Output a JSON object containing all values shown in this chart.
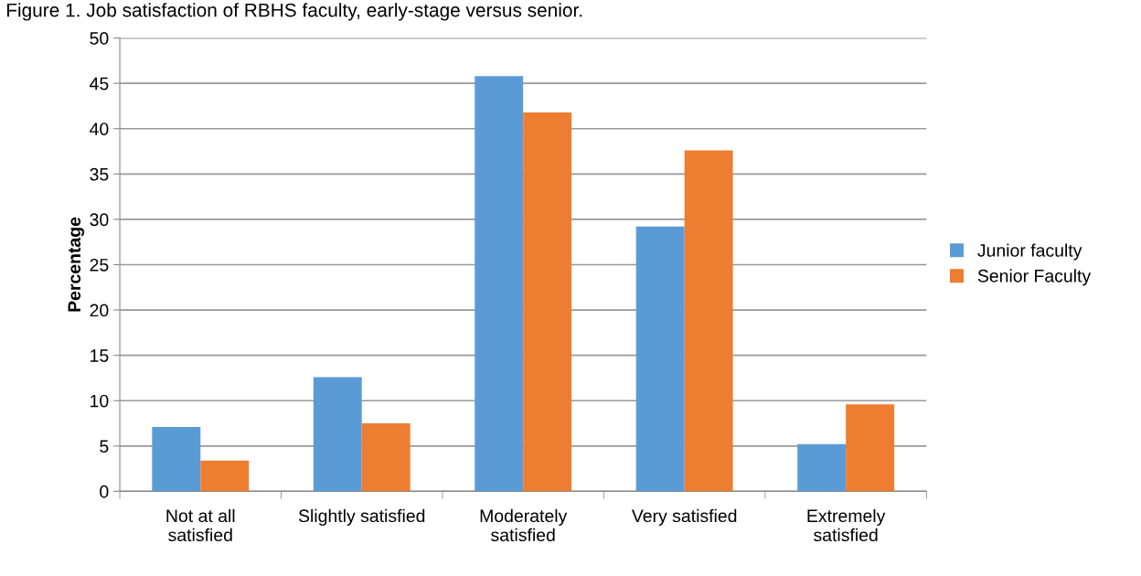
{
  "chart_data": {
    "type": "bar",
    "title": "Figure 1. Job satisfaction of RBHS faculty, early-stage versus senior.",
    "ylabel": "Percentage",
    "categories": [
      "Not at all\nsatisfied",
      "Slightly satisfied",
      "Moderately\nsatisfied",
      "Very satisfied",
      "Extremely\nsatisfied"
    ],
    "series": [
      {
        "name": "Junior faculty",
        "color": "#5b9bd5",
        "values": [
          7.1,
          12.6,
          45.8,
          29.2,
          5.2
        ]
      },
      {
        "name": "Senior Faculty",
        "color": "#ed7d31",
        "values": [
          3.4,
          7.5,
          41.8,
          37.6,
          9.6
        ]
      }
    ],
    "ylim": [
      0,
      50
    ],
    "yticks": [
      0,
      5,
      10,
      15,
      20,
      25,
      30,
      35,
      40,
      45,
      50
    ],
    "grid": "y",
    "legend": "right"
  }
}
